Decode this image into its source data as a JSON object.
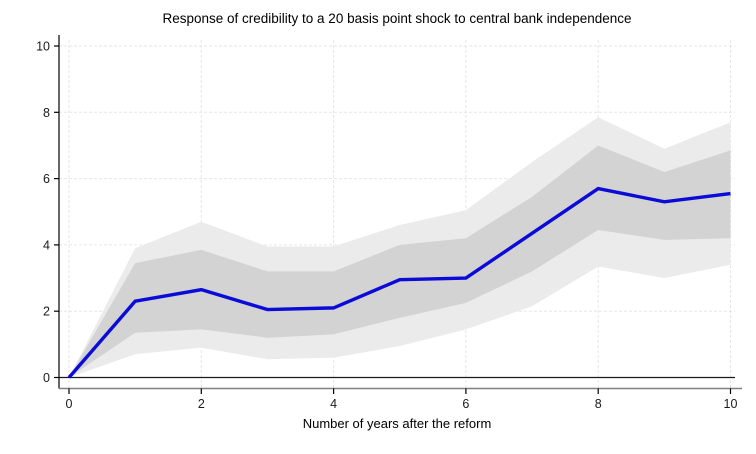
{
  "figure": {
    "title": "Response of credibility to a 20 basis point shock to central bank independence",
    "x_axis_label": "Number of years after the reform"
  },
  "chart_data": {
    "type": "line",
    "title": "Response of credibility to a 20 basis point shock to central bank independence",
    "xlabel": "Number of years after the reform",
    "ylabel": "",
    "x": [
      0,
      1,
      2,
      3,
      4,
      5,
      6,
      7,
      8,
      9,
      10
    ],
    "series": [
      {
        "name": "response",
        "values": [
          0,
          2.3,
          2.65,
          2.05,
          2.1,
          2.95,
          3.0,
          4.35,
          5.7,
          5.3,
          5.55
        ]
      }
    ],
    "bands": [
      {
        "name": "outer-confidence-band",
        "lower": [
          0,
          0.7,
          0.9,
          0.55,
          0.6,
          0.95,
          1.45,
          2.15,
          3.35,
          3.0,
          3.4
        ],
        "upper": [
          0,
          3.9,
          4.7,
          3.95,
          3.95,
          4.6,
          5.05,
          6.5,
          7.85,
          6.9,
          7.7
        ]
      },
      {
        "name": "inner-confidence-band",
        "lower": [
          0,
          1.35,
          1.45,
          1.2,
          1.3,
          1.8,
          2.25,
          3.2,
          4.45,
          4.15,
          4.2
        ],
        "upper": [
          0,
          3.45,
          3.85,
          3.2,
          3.2,
          4.0,
          4.2,
          5.45,
          7.0,
          6.2,
          6.85
        ]
      }
    ],
    "xlim": [
      0,
      10
    ],
    "ylim": [
      0,
      10
    ],
    "x_ticks": [
      0,
      2,
      4,
      6,
      8,
      10
    ],
    "y_ticks": [
      0,
      2,
      4,
      6,
      8,
      10
    ],
    "grid": true,
    "zero_line": 0,
    "legend": "none",
    "colors": {
      "line": "#0b0bd8",
      "inner_band": "#d3d3d3",
      "outer_band": "#ebebeb",
      "grid": "#e6e6e6",
      "axis": "#000000",
      "x_axis_line": "#808080",
      "zero_line": "#1a1a1a",
      "text": "#1a1a1a"
    }
  }
}
